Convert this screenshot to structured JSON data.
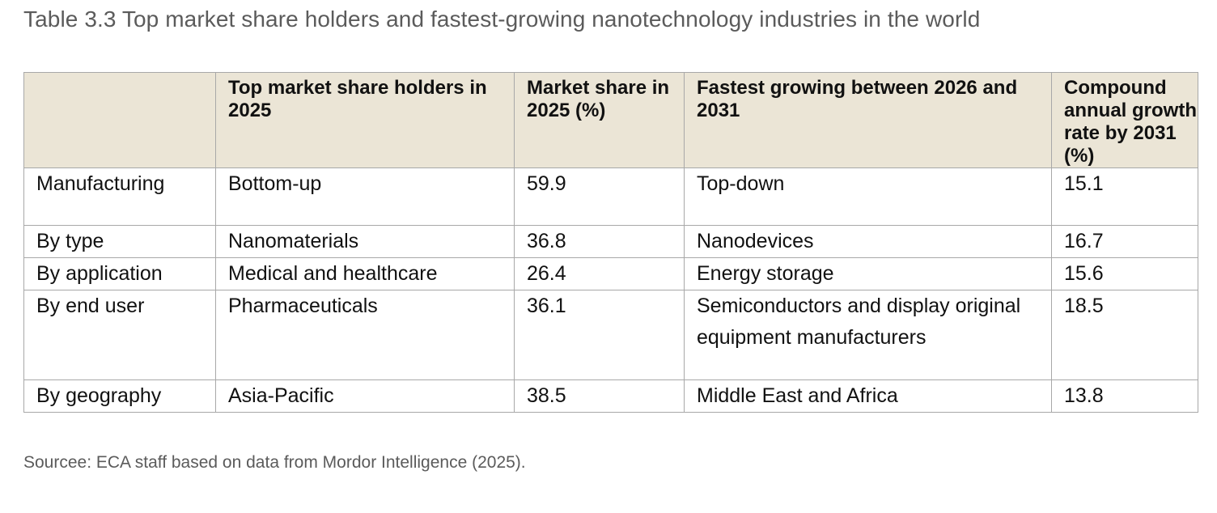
{
  "caption": "Table 3.3 Top market share holders and fastest-growing nanotechnology industries in the world",
  "table": {
    "headers": [
      "",
      "Top market share holders in 2025",
      "Market share in 2025 (%)",
      "Fastest growing between 2026 and 2031",
      "Compound annual growth rate by 2031 (%)"
    ],
    "rows": [
      [
        "Manufacturing",
        "Bottom-up",
        "59.9",
        "Top-down",
        "15.1"
      ],
      [
        "By type",
        "Nanomaterials",
        "36.8",
        "Nanodevices",
        "16.7"
      ],
      [
        "By application",
        "Medical and healthcare",
        "26.4",
        "Energy storage",
        "15.6"
      ],
      [
        "By end user",
        "Pharmaceuticals",
        "36.1",
        "Semiconductors and display original equipment manufacturers",
        "18.5"
      ],
      [
        "By geography",
        "Asia-Pacific",
        "38.5",
        "Middle East and Africa",
        "13.8"
      ]
    ]
  },
  "source": "Sourcee: ECA staff based on data from Mordor Intelligence (2025)."
}
